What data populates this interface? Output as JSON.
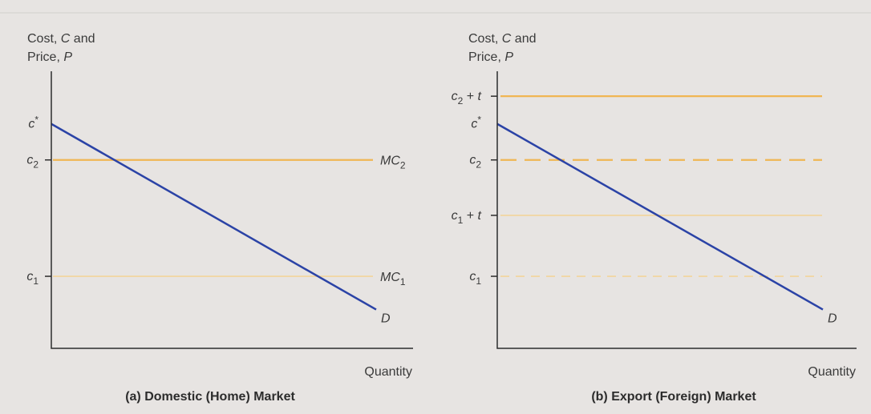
{
  "colors": {
    "background": "#e7e4e2",
    "demand": "#2b43a6",
    "cost_strong": "#f0b653",
    "cost_light": "#f1d6a4",
    "text": "#3a3a3a"
  },
  "chart_data": [
    {
      "type": "line",
      "panel_title": "(a) Domestic (Home) Market",
      "ylabel_line1": "Cost, ",
      "ylabel_C": "C",
      "ylabel_and": " and",
      "ylabel_line2": "Price, ",
      "ylabel_P": "P",
      "xlabel": "Quantity",
      "ticks": [
        {
          "id": "cstar",
          "base": "c",
          "sup": "*",
          "sub": "",
          "suffix": "",
          "y": 0.81
        },
        {
          "id": "c2",
          "base": "c",
          "sup": "",
          "sub": "2",
          "suffix": "",
          "y": 0.68
        },
        {
          "id": "c1",
          "base": "c",
          "sup": "",
          "sub": "1",
          "suffix": "",
          "y": 0.26
        }
      ],
      "cost_lines": [
        {
          "id": "mc2",
          "base": "MC",
          "sub": "2",
          "y": 0.68,
          "style": "solid",
          "tone": "strong"
        },
        {
          "id": "mc1",
          "base": "MC",
          "sub": "1",
          "y": 0.26,
          "style": "solid",
          "tone": "light"
        }
      ],
      "demand": {
        "label": "D",
        "x": [
          0,
          0.99
        ],
        "y": [
          0.81,
          0.14
        ]
      }
    },
    {
      "type": "line",
      "panel_title": "(b) Export (Foreign) Market",
      "ylabel_line1": "Cost, ",
      "ylabel_C": "C",
      "ylabel_and": " and",
      "ylabel_line2": "Price, ",
      "ylabel_P": "P",
      "xlabel": "Quantity",
      "ticks": [
        {
          "id": "c2t",
          "base": "c",
          "sup": "",
          "sub": "2",
          "suffix": " + t",
          "y": 0.91
        },
        {
          "id": "cstar",
          "base": "c",
          "sup": "*",
          "sub": "",
          "suffix": "",
          "y": 0.81
        },
        {
          "id": "c2",
          "base": "c",
          "sup": "",
          "sub": "2",
          "suffix": "",
          "y": 0.68
        },
        {
          "id": "c1t",
          "base": "c",
          "sup": "",
          "sub": "1",
          "suffix": " + t",
          "y": 0.48
        },
        {
          "id": "c1",
          "base": "c",
          "sup": "",
          "sub": "1",
          "suffix": "",
          "y": 0.26
        }
      ],
      "cost_lines": [
        {
          "id": "c2t",
          "y": 0.91,
          "style": "solid",
          "tone": "strong"
        },
        {
          "id": "c2",
          "y": 0.68,
          "style": "dashed",
          "tone": "strong"
        },
        {
          "id": "c1t",
          "y": 0.48,
          "style": "solid",
          "tone": "light"
        },
        {
          "id": "c1",
          "y": 0.26,
          "style": "dashed",
          "tone": "light"
        }
      ],
      "demand": {
        "label": "D",
        "x": [
          0,
          0.99
        ],
        "y": [
          0.81,
          0.14
        ]
      }
    }
  ]
}
